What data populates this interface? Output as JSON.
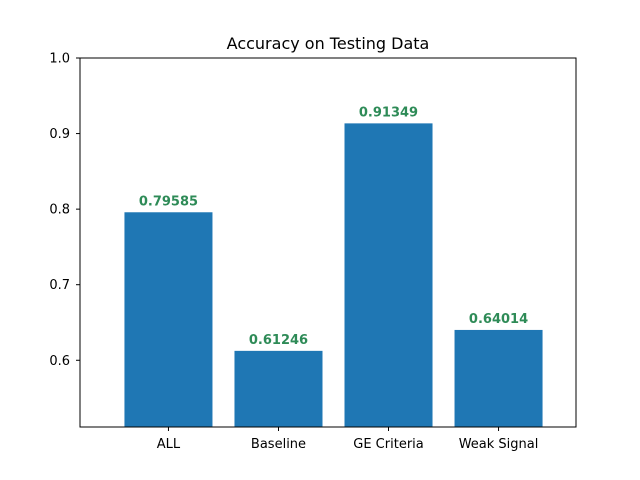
{
  "chart_data": {
    "type": "bar",
    "title": "Accuracy on Testing Data",
    "xlabel": "",
    "ylabel": "",
    "categories": [
      "ALL",
      "Baseline",
      "GE Criteria",
      "Weak Signal"
    ],
    "values": [
      0.79585,
      0.61246,
      0.91349,
      0.64014
    ],
    "data_labels": [
      "0.79585",
      "0.61246",
      "0.91349",
      "0.64014"
    ],
    "ylim": [
      0.5117,
      1.0
    ],
    "yticks": [
      0.6,
      0.7,
      0.8,
      0.9,
      1.0
    ],
    "ytick_labels": [
      "0.6",
      "0.7",
      "0.8",
      "0.9",
      "1.0"
    ],
    "grid": false,
    "legend": "none",
    "colors": {
      "bar": "#1f77b4",
      "label": "#2e8b57",
      "axis": "#000000"
    }
  }
}
